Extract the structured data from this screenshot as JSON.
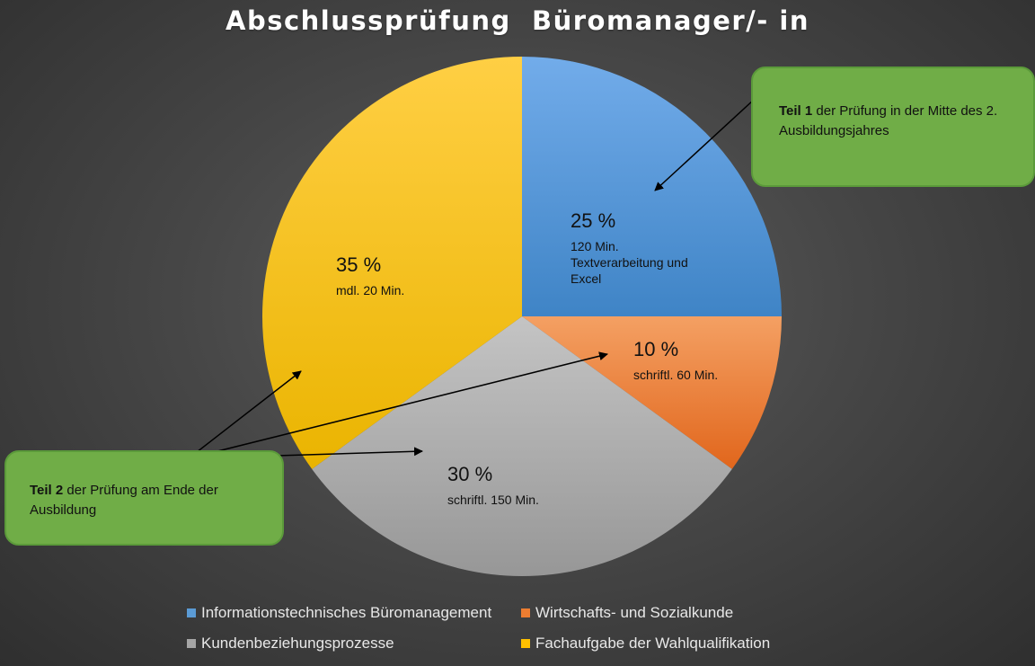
{
  "chart_data": {
    "type": "pie",
    "title": "Abschlussprüfung  Büromanager/- in",
    "slices": [
      {
        "category": "Informationstechnisches Büromanagement",
        "value": 25,
        "percent_label": "25 %",
        "detail": "120 Min. Textverarbeitung und Excel",
        "color": "#5b9bd5"
      },
      {
        "category": "Wirtschafts- und Sozialkunde",
        "value": 10,
        "percent_label": "10 %",
        "detail": "schriftl. 60 Min.",
        "color": "#ed7d31"
      },
      {
        "category": "Kundenbeziehungsprozesse",
        "value": 30,
        "percent_label": "30 %",
        "detail": "schriftl. 150 Min.",
        "color": "#a5a5a5"
      },
      {
        "category": "Fachaufgabe der Wahlqualifikation",
        "value": 35,
        "percent_label": "35 %",
        "detail": "mdl. 20 Min.",
        "color": "#ffc000"
      }
    ],
    "legend_position": "bottom"
  },
  "callouts": [
    {
      "bold": "Teil 1",
      "text": " der Prüfung in der Mitte des 2. Ausbildungsjahres"
    },
    {
      "bold": "Teil 2",
      "text": " der Prüfung am Ende der Ausbildung"
    }
  ]
}
